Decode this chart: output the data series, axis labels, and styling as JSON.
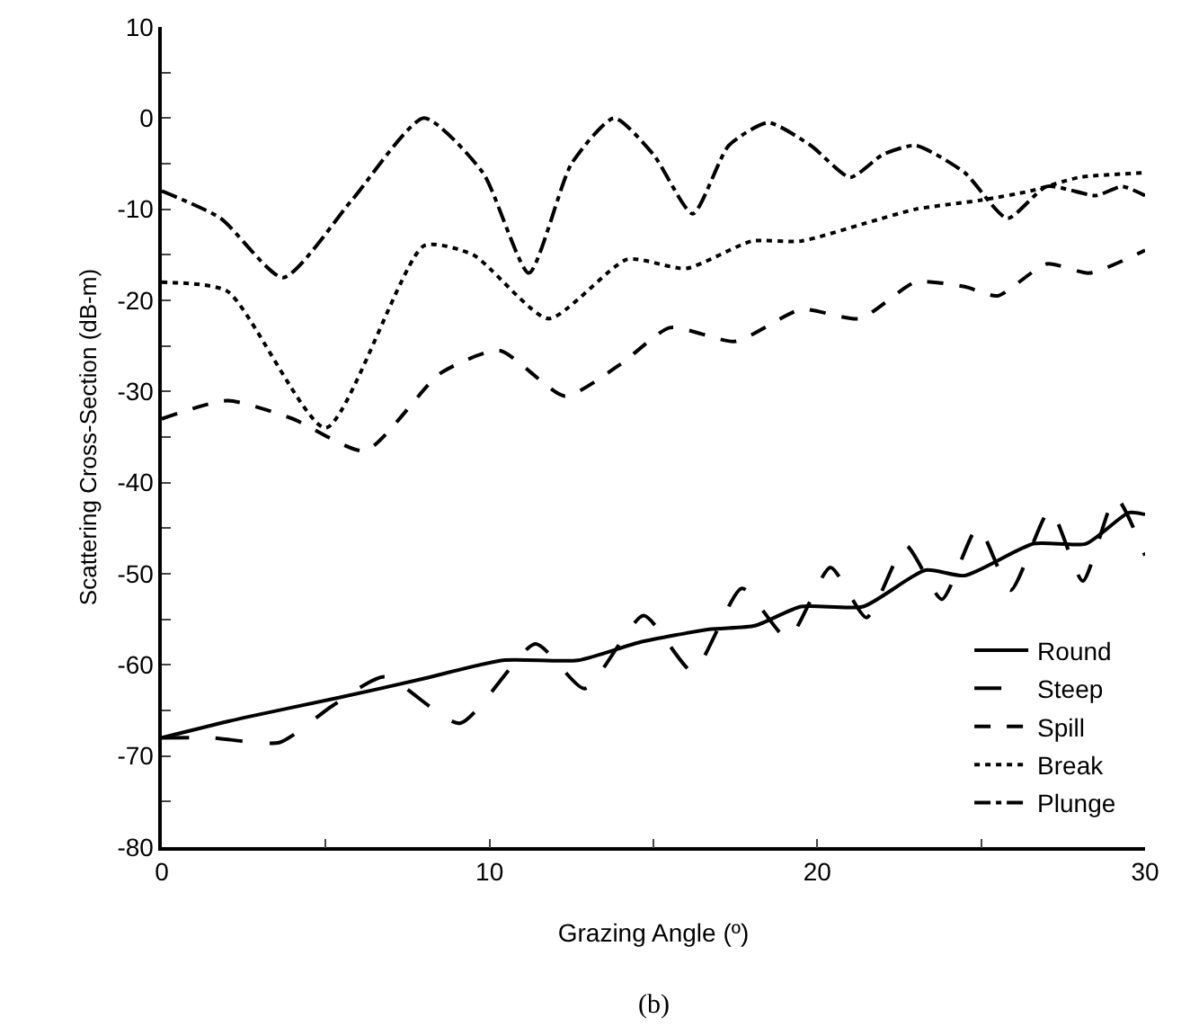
{
  "chart_data": {
    "type": "line",
    "xlabel": "Grazing Angle (º)",
    "ylabel": "Scattering Cross-Section (dB-m)",
    "annotations": [
      "(b)"
    ],
    "xlim": [
      0,
      30
    ],
    "ylim": [
      -80,
      10
    ],
    "xticks": [
      0,
      {
        "value": 5,
        "label": null
      },
      10,
      {
        "value": 15,
        "label": null
      },
      20,
      {
        "value": 25,
        "label": null
      },
      30
    ],
    "yticks": [
      -80,
      {
        "value": -75,
        "label": null
      },
      -70,
      {
        "value": -65,
        "label": null
      },
      -60,
      {
        "value": -55,
        "label": null
      },
      -50,
      {
        "value": -45,
        "label": null
      },
      -40,
      {
        "value": -35,
        "label": null
      },
      -30,
      {
        "value": -25,
        "label": null
      },
      -20,
      {
        "value": -15,
        "label": null
      },
      -10,
      {
        "value": -5,
        "label": null
      },
      0,
      {
        "value": 5,
        "label": null
      },
      10
    ],
    "grid": false,
    "legend": "bottom right",
    "marker": "none",
    "series": [
      {
        "name": "Round",
        "color": "#000000",
        "line_style": "solid",
        "x": [
          0,
          2.5,
          5.4,
          8,
          10.4,
          12.7,
          14.6,
          16.7,
          18.1,
          19.5,
          21.4,
          23.3,
          24.5,
          26.6,
          28.2,
          29.5,
          30
        ],
        "values": [
          -68,
          -65.8,
          -63.6,
          -61.5,
          -59.5,
          -59.5,
          -57.5,
          -56.1,
          -55.7,
          -53.6,
          -53.6,
          -49.6,
          -50.2,
          -46.7,
          -46.7,
          -43.3,
          -43.5
        ]
      },
      {
        "name": "Steep",
        "color": "#000000",
        "line_style": "longdash",
        "x": [
          0,
          1.5,
          3.6,
          5.2,
          6.8,
          9.1,
          11.4,
          12.9,
          14.7,
          16.2,
          17.7,
          19.1,
          20.4,
          21.5,
          22.7,
          23.8,
          24.9,
          25.9,
          27.1,
          28.1,
          29.1,
          30
        ],
        "values": [
          -68,
          -68,
          -68.5,
          -64.5,
          -61.3,
          -66.4,
          -57.7,
          -62.6,
          -54.6,
          -60.7,
          -51.6,
          -57.1,
          -49.3,
          -54.8,
          -46.9,
          -52.8,
          -44.9,
          -51.8,
          -43,
          -50.8,
          -41.6,
          -48
        ]
      },
      {
        "name": "Spill",
        "color": "#000000",
        "line_style": "dashed",
        "x": [
          0,
          2,
          4,
          6.2,
          8.5,
          10.3,
          12.3,
          14,
          15.5,
          17.5,
          19.5,
          21.3,
          23,
          24.5,
          25.5,
          27,
          28.3,
          30
        ],
        "values": [
          -33,
          -31,
          -33,
          -36.5,
          -28,
          -25.5,
          -30.5,
          -27,
          -23,
          -24.5,
          -21,
          -22,
          -18,
          -18.5,
          -19.5,
          -16,
          -17,
          -14.5
        ]
      },
      {
        "name": "Break",
        "color": "#000000",
        "line_style": "dotted",
        "x": [
          0,
          2,
          5,
          8,
          9.5,
          11.8,
          14.2,
          16,
          18,
          19.5,
          21.5,
          23,
          25,
          26.5,
          28,
          30
        ],
        "values": [
          -18,
          -19,
          -34,
          -14,
          -15,
          -22,
          -15.5,
          -16.5,
          -13.5,
          -13.5,
          -11.5,
          -10,
          -9,
          -8,
          -6.5,
          -6
        ]
      },
      {
        "name": "Plunge",
        "color": "#000000",
        "line_style": "dashdot",
        "x": [
          0,
          1.8,
          3.7,
          5.8,
          8,
          9.8,
          11.2,
          12.5,
          13.8,
          15,
          16.2,
          17.3,
          18.5,
          19.8,
          21,
          22,
          23,
          24.5,
          25.8,
          27,
          28.5,
          29.3,
          30
        ],
        "values": [
          -8,
          -11,
          -17.5,
          -9,
          0,
          -6,
          -17,
          -5,
          0,
          -4,
          -10.5,
          -3,
          -0.5,
          -3,
          -6.5,
          -4,
          -3,
          -6,
          -11,
          -7.5,
          -8.5,
          -7.5,
          -8.5
        ]
      }
    ]
  }
}
